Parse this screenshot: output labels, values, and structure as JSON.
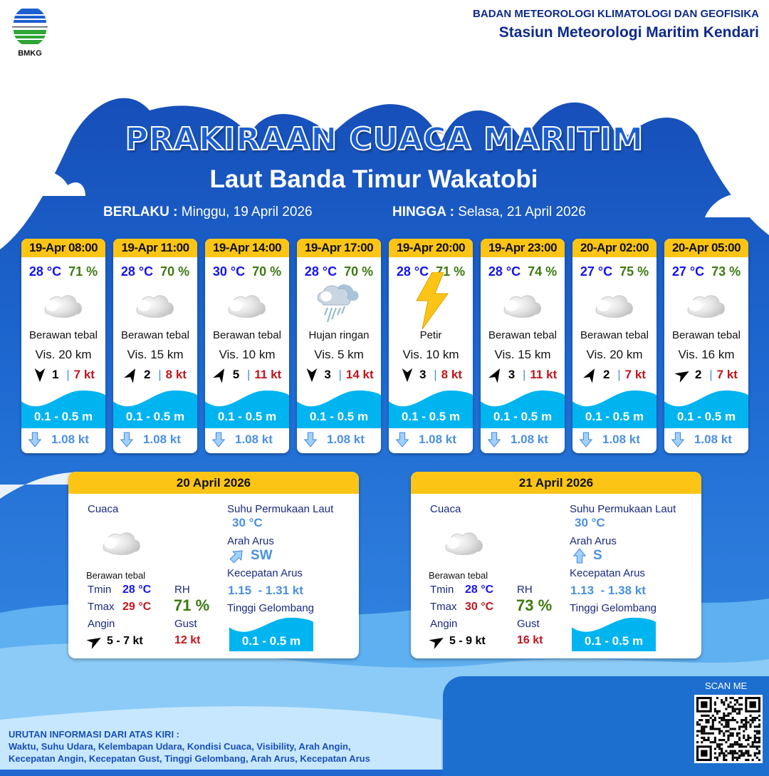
{
  "header": {
    "logo_text": "BMKG",
    "org": "BADAN METEOROLOGI KLIMATOLOGI DAN GEOFISIKA",
    "station": "Stasiun Meteorologi Maritim Kendari"
  },
  "title": "PRAKIRAAN CUACA MARITIM",
  "area": "Laut Banda Timur Wakatobi",
  "validity": {
    "from_label": "BERLAKU :",
    "from": "Minggu, 19 April 2026",
    "to_label": "HINGGA :",
    "to": "Selasa, 21 April 2026"
  },
  "colors": {
    "header_yellow": "#fcc516",
    "temp": "#1414f0",
    "humidity": "#3d7a12",
    "gust": "#c0141c",
    "wave": "#00b4f0",
    "current": "#4a90e2"
  },
  "forecasts": [
    {
      "time": "19-Apr 08:00",
      "temp": "28 °C",
      "rh": "71 %",
      "icon": "cloud-icon",
      "condition": "Berawan tebal",
      "vis": "Vis.  20 km",
      "wind_dir_deg": 180,
      "wind": "1",
      "gust": "7 kt",
      "wave": "0.1 - 0.5 m",
      "current_icon": "arrow-down-icon",
      "current": "1.08 kt"
    },
    {
      "time": "19-Apr 11:00",
      "temp": "28 °C",
      "rh": "70 %",
      "icon": "cloud-icon",
      "condition": "Berawan tebal",
      "vis": "Vis. 15 km",
      "wind_dir_deg": 30,
      "wind": "2",
      "gust": "8 kt",
      "wave": "0.1 - 0.5 m",
      "current_icon": "arrow-down-icon",
      "current": "1.08 kt"
    },
    {
      "time": "19-Apr 14:00",
      "temp": "30 °C",
      "rh": "70 %",
      "icon": "cloud-icon",
      "condition": "Berawan tebal",
      "vis": "Vis. 10 km",
      "wind_dir_deg": 30,
      "wind": "5",
      "gust": "11 kt",
      "wave": "0.1 - 0.5 m",
      "current_icon": "arrow-down-icon",
      "current": "1.08 kt"
    },
    {
      "time": "19-Apr 17:00",
      "temp": "28 °C",
      "rh": "70 %",
      "icon": "rain-icon",
      "condition": "Hujan ringan",
      "vis": "Vis.  5 km",
      "wind_dir_deg": 180,
      "wind": "3",
      "gust": "14 kt",
      "wave": "0.1 - 0.5 m",
      "current_icon": "arrow-down-icon",
      "current": "1.08 kt"
    },
    {
      "time": "19-Apr 20:00",
      "temp": "28 °C",
      "rh": "71 %",
      "icon": "lightning-icon",
      "condition": "Petir",
      "vis": "Vis.  10 km",
      "wind_dir_deg": 180,
      "wind": "3",
      "gust": "8 kt",
      "wave": "0.1 - 0.5 m",
      "current_icon": "arrow-down-icon",
      "current": "1.08 kt"
    },
    {
      "time": "19-Apr 23:00",
      "temp": "28 °C",
      "rh": "74 %",
      "icon": "cloud-icon",
      "condition": "Berawan tebal",
      "vis": "Vis.  15 km",
      "wind_dir_deg": 30,
      "wind": "3",
      "gust": "11 kt",
      "wave": "0.1 - 0.5 m",
      "current_icon": "arrow-down-icon",
      "current": "1.08 kt"
    },
    {
      "time": "20-Apr 02:00",
      "temp": "27 °C",
      "rh": "75 %",
      "icon": "cloud-icon",
      "condition": "Berawan tebal",
      "vis": "Vis.  20 km",
      "wind_dir_deg": 30,
      "wind": "2",
      "gust": "7 kt",
      "wave": "0.1 - 0.5 m",
      "current_icon": "arrow-down-icon",
      "current": "1.08 kt"
    },
    {
      "time": "20-Apr 05:00",
      "temp": "27 °C",
      "rh": "73 %",
      "icon": "cloud-icon",
      "condition": "Berawan tebal",
      "vis": "Vis.  16 km",
      "wind_dir_deg": 60,
      "wind": "2",
      "gust": "7 kt",
      "wave": "0.1 - 0.5 m",
      "current_icon": "arrow-down-icon",
      "current": "1.08 kt"
    }
  ],
  "labels": {
    "weather": "Cuaca",
    "tmin": "Tmin",
    "tmax": "Tmax",
    "rh": "RH",
    "wind": "Angin",
    "gust": "Gust",
    "sst": "Suhu Permukaan Laut",
    "cur_dir": "Arah Arus",
    "cur_speed": "Kecepatan Arus",
    "wave": "Tinggi Gelombang"
  },
  "daily": [
    {
      "date": "20 April 2026",
      "condition": "Berawan tebal",
      "tmin": "28 °C",
      "tmax": "29 °C",
      "rh": "71 %",
      "wind_dir_deg": 60,
      "wind": "5  - 7 kt",
      "gust": "12 kt",
      "sst": "30 °C",
      "cur_dir": "SW",
      "cur_dir_deg": 225,
      "cur_speed_min": "1.15",
      "cur_speed_max": "- 1.31 kt",
      "wave": "0.1 - 0.5 m"
    },
    {
      "date": "21 April 2026",
      "condition": "Berawan tebal",
      "tmin": "28 °C",
      "tmax": "30 °C",
      "rh": "73 %",
      "wind_dir_deg": 60,
      "wind": "5  - 9 kt",
      "gust": "16 kt",
      "sst": "30 °C",
      "cur_dir": "S",
      "cur_dir_deg": 180,
      "cur_speed_min": "1.13",
      "cur_speed_max": "- 1.38 kt",
      "wave": "0.1 - 0.5 m"
    }
  ],
  "footer": {
    "heading": "URUTAN INFORMASI DARI ATAS KIRI :",
    "line1": "Waktu, Suhu Udara, Kelembapan Udara, Kondisi Cuaca, Visibility, Arah Angin,",
    "line2": "Kecepatan Angin, Kecepatan Gust, Tinggi Gelombang, Arah Arus, Kecepatan Arus",
    "scan": "SCAN ME"
  }
}
